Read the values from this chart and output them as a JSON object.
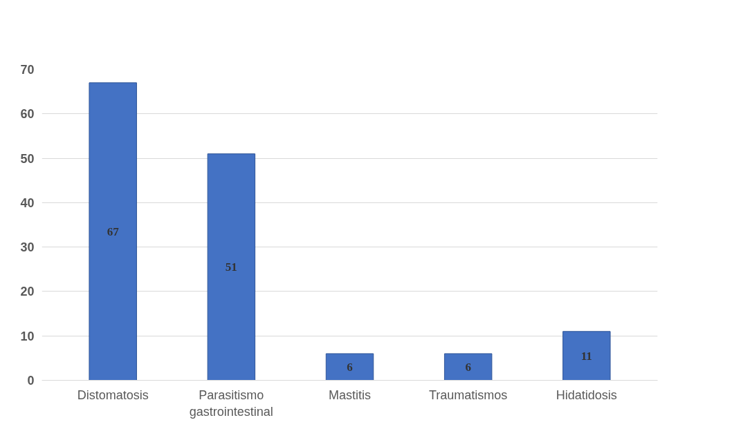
{
  "chart_data": {
    "type": "bar",
    "categories": [
      "Distomatosis",
      "Parasitismo gastrointestinal",
      "Mastitis",
      "Traumatismos",
      "Hidatidosis"
    ],
    "values": [
      67,
      51,
      6,
      6,
      11
    ],
    "color": "#4472c4",
    "ylim": [
      0,
      70
    ],
    "yticks": [
      0,
      10,
      20,
      30,
      40,
      50,
      60,
      70
    ],
    "grid": "y",
    "data_labels": true
  }
}
